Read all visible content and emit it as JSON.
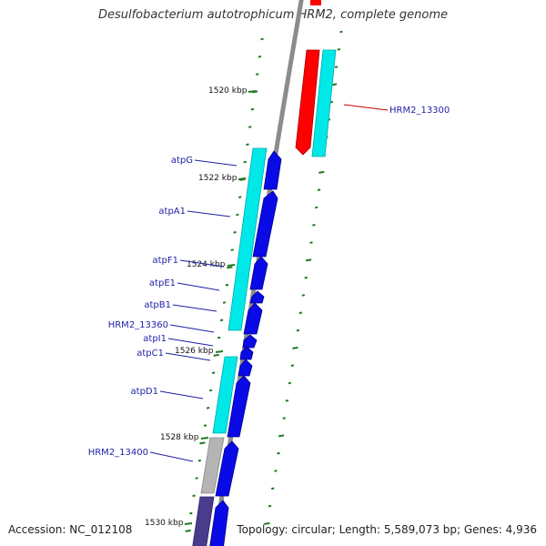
{
  "title": "Desulfobacterium autotrophicum HRM2, complete genome",
  "accession": "Accession: NC_012108",
  "summary": "Topology: circular; Length: 5,589,073 bp; Genes: 4,936",
  "colors": {
    "backbone": "#8c8c8c",
    "tick": "#1f7a1f",
    "cds_forward": "#0a0ae6",
    "cds_alt": "#00e8e8",
    "highlight": "#ff0000",
    "gray_feature": "#b4b4b4",
    "dark_feature": "#4a3c8c",
    "label_blue": "#1f1fa8",
    "label_red": "#d00000"
  },
  "ticks": [
    {
      "label": "1520 kbp",
      "kbp": 1520
    },
    {
      "label": "1522 kbp",
      "kbp": 1522
    },
    {
      "label": "1524 kbp",
      "kbp": 1524
    },
    {
      "label": "1526 kbp",
      "kbp": 1526
    },
    {
      "label": "1528 kbp",
      "kbp": 1528
    },
    {
      "label": "1530 kbp",
      "kbp": 1530
    }
  ],
  "genes": [
    {
      "name": "atpG"
    },
    {
      "name": "atpA1"
    },
    {
      "name": "atpF1"
    },
    {
      "name": "atpE1"
    },
    {
      "name": "atpB1"
    },
    {
      "name": "HRM2_13360"
    },
    {
      "name": "atpI1"
    },
    {
      "name": "atpC1"
    },
    {
      "name": "atpD1"
    },
    {
      "name": "HRM2_13400"
    },
    {
      "name": "HRM2_13300",
      "highlighted": true
    }
  ]
}
